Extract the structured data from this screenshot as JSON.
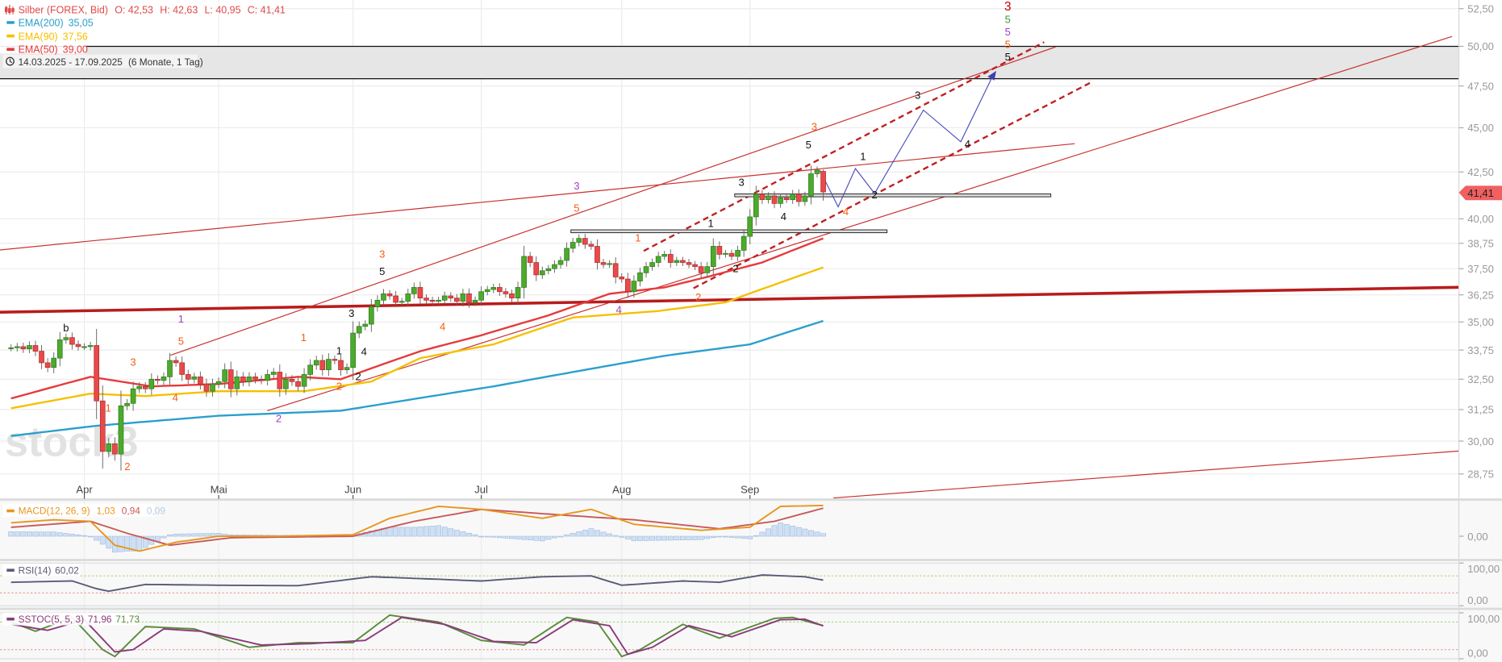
{
  "legend": {
    "title": "Silber (FOREX, Bid)",
    "open": "O: 42,53",
    "high": "H: 42,63",
    "low": "L: 40,95",
    "close": "C: 41,41",
    "ema200_label": "EMA(200)",
    "ema200_value": "35,05",
    "ema90_label": "EMA(90)",
    "ema90_value": "37,56",
    "ema50_label": "EMA(50)",
    "ema50_value": "39,00",
    "range": "14.03.2025 - 17.09.2025",
    "range_span": "(6 Monate, 1 Tag)",
    "macd_label": "MACD(12, 26, 9)",
    "macd_value": "1,03",
    "macd_signal": "0,94",
    "macd_hist": "0,09",
    "rsi_label": "RSI(14)",
    "rsi_value": "60,02",
    "sstoc_label": "SSTOC(5, 5, 3)",
    "sstoc_k": "71,96",
    "sstoc_d": "71,73"
  },
  "last_price_label": "41,41",
  "watermark": "stock3",
  "colors": {
    "up": "#4caa2c",
    "down": "#e84a4a",
    "ema200": "#2a9fcc",
    "ema90": "#f5c000",
    "ema50": "#e63a3a",
    "macd": "#e8961e",
    "signal": "#c85a5a",
    "hist": "#cfe0f5",
    "rsi": "#5a5a7a",
    "sstoc_k": "#8a3a7a",
    "sstoc_d": "#5a8a3a",
    "trend_thick": "#b81c1c",
    "trend_thin": "#c83030",
    "projection": "#5050c0",
    "price_marker": "#f06060"
  },
  "chart_data": [
    {
      "type": "candlestick",
      "title": "Silber (FOREX, Bid)",
      "scale": "log",
      "ylim": [
        28.0,
        53.0
      ],
      "start_date": "2025-03-14",
      "end_date": "2025-09-17",
      "x_tick_labels": [
        "Apr",
        "Mai",
        "Jun",
        "Jul",
        "Aug",
        "Sep"
      ],
      "y_ticks": [
        52.5,
        50,
        47.5,
        45,
        42.5,
        40,
        38.75,
        37.5,
        36.25,
        35,
        33.75,
        32.5,
        31.25,
        30,
        28.75
      ],
      "grid": true,
      "closes": [
        33.85,
        33.9,
        33.8,
        33.95,
        33.7,
        33.2,
        33.0,
        33.4,
        34.2,
        34.3,
        34.0,
        33.9,
        33.9,
        33.95,
        31.6,
        29.6,
        29.9,
        29.5,
        31.4,
        31.5,
        32.1,
        32.2,
        32.1,
        32.5,
        32.45,
        32.6,
        33.3,
        33.2,
        32.7,
        32.5,
        32.6,
        32.3,
        32.0,
        32.3,
        32.4,
        32.9,
        32.1,
        32.6,
        32.4,
        32.6,
        32.5,
        32.45,
        32.7,
        32.8,
        32.1,
        32.5,
        32.4,
        32.2,
        32.7,
        33.1,
        33.3,
        32.9,
        33.35,
        33.3,
        32.9,
        33.0,
        34.5,
        34.8,
        34.9,
        35.7,
        36.0,
        36.3,
        36.2,
        35.9,
        35.95,
        36.3,
        36.6,
        36.1,
        36.0,
        35.95,
        36.0,
        36.2,
        36.1,
        35.95,
        36.3,
        35.9,
        36.0,
        36.4,
        36.5,
        36.6,
        36.4,
        36.3,
        36.1,
        36.6,
        38.1,
        37.8,
        37.2,
        37.4,
        37.5,
        37.7,
        37.9,
        38.5,
        38.8,
        39.0,
        38.7,
        38.6,
        37.8,
        37.7,
        37.75,
        37.1,
        37.0,
        36.4,
        36.9,
        37.3,
        37.6,
        37.8,
        38.1,
        38.2,
        37.8,
        37.9,
        37.8,
        37.7,
        37.6,
        37.3,
        37.6,
        38.6,
        38.2,
        38.25,
        38.1,
        38.4,
        39.1,
        40.1,
        41.3,
        41.0,
        41.2,
        40.8,
        41.1,
        41.0,
        41.3,
        40.9,
        41.2,
        42.4,
        42.6,
        41.41
      ],
      "last_bar": {
        "open": 42.53,
        "high": 42.63,
        "low": 40.95,
        "close": 41.41
      },
      "series": [
        {
          "name": "EMA(200)",
          "points": [
            [
              "2025-03-14",
              30.2
            ],
            [
              "2025-04-03",
              30.6
            ],
            [
              "2025-05-01",
              31.0
            ],
            [
              "2025-05-29",
              31.2
            ],
            [
              "2025-07-03",
              32.2
            ],
            [
              "2025-08-12",
              33.5
            ],
            [
              "2025-09-01",
              34.0
            ],
            [
              "2025-09-17",
              35.05
            ]
          ]
        },
        {
          "name": "EMA(90)",
          "points": [
            [
              "2025-03-14",
              31.3
            ],
            [
              "2025-04-02",
              31.9
            ],
            [
              "2025-04-15",
              31.8
            ],
            [
              "2025-05-01",
              32.0
            ],
            [
              "2025-05-21",
              32.0
            ],
            [
              "2025-06-05",
              32.4
            ],
            [
              "2025-06-17",
              33.4
            ],
            [
              "2025-07-03",
              34.0
            ],
            [
              "2025-07-22",
              35.2
            ],
            [
              "2025-08-11",
              35.5
            ],
            [
              "2025-08-26",
              35.9
            ],
            [
              "2025-09-17",
              37.56
            ]
          ]
        },
        {
          "name": "EMA(50)",
          "points": [
            [
              "2025-03-14",
              31.7
            ],
            [
              "2025-04-02",
              32.6
            ],
            [
              "2025-04-16",
              32.2
            ],
            [
              "2025-05-01",
              32.3
            ],
            [
              "2025-05-20",
              32.6
            ],
            [
              "2025-05-29",
              32.5
            ],
            [
              "2025-06-17",
              33.7
            ],
            [
              "2025-07-01",
              34.4
            ],
            [
              "2025-07-16",
              35.3
            ],
            [
              "2025-07-30",
              36.3
            ],
            [
              "2025-08-12",
              36.6
            ],
            [
              "2025-08-21",
              37.1
            ],
            [
              "2025-09-03",
              37.8
            ],
            [
              "2025-09-17",
              39.0
            ]
          ]
        }
      ],
      "resistance_band": [
        47.95,
        50.0
      ],
      "wave_labels": [
        {
          "text": "1",
          "color": "#a040c0"
        },
        {
          "text": "2",
          "color": "#a040c0"
        },
        {
          "text": "3",
          "color": "#a040c0"
        },
        {
          "text": "4",
          "color": "#a040c0"
        },
        {
          "text": "5",
          "color": "#a040c0"
        },
        {
          "text": "1",
          "color": "#f06010"
        },
        {
          "text": "2",
          "color": "#f06010"
        },
        {
          "text": "3",
          "color": "#f06010"
        },
        {
          "text": "4",
          "color": "#f06010"
        },
        {
          "text": "5",
          "color": "#f06010"
        },
        {
          "text": "1",
          "color": "#f06010"
        },
        {
          "text": "2",
          "color": "#f06010"
        },
        {
          "text": "3",
          "color": "#f06010"
        },
        {
          "text": "4",
          "color": "#f06010"
        },
        {
          "text": "5",
          "color": "#f06010"
        },
        {
          "text": "1",
          "color": "#f06010"
        },
        {
          "text": "2",
          "color": "#f06010"
        },
        {
          "text": "3",
          "color": "#f06010"
        },
        {
          "text": "4",
          "color": "#f06010"
        },
        {
          "text": "5",
          "color": "#f06010"
        },
        {
          "text": "b",
          "color": "#111111"
        },
        {
          "text": "1",
          "color": "#111111"
        },
        {
          "text": "2",
          "color": "#111111"
        },
        {
          "text": "3",
          "color": "#111111"
        },
        {
          "text": "4",
          "color": "#111111"
        },
        {
          "text": "5",
          "color": "#111111"
        },
        {
          "text": "1",
          "color": "#111111"
        },
        {
          "text": "2",
          "color": "#111111"
        },
        {
          "text": "3",
          "color": "#111111"
        },
        {
          "text": "4",
          "color": "#111111"
        },
        {
          "text": "5",
          "color": "#111111"
        },
        {
          "text": "1",
          "color": "#111111"
        },
        {
          "text": "2",
          "color": "#111111"
        },
        {
          "text": "3",
          "color": "#111111"
        },
        {
          "text": "4",
          "color": "#111111"
        },
        {
          "text": "5",
          "color": "#111111"
        },
        {
          "text": "5",
          "color": "#3a9a3a"
        },
        {
          "text": "3",
          "color": "#c00000"
        }
      ]
    },
    {
      "type": "line",
      "title": "MACD(12, 26, 9)",
      "y_ticks": [
        0
      ],
      "series": [
        {
          "name": "MACD",
          "points": [
            [
              "2025-03-14",
              0.45
            ],
            [
              "2025-03-25",
              0.55
            ],
            [
              "2025-04-02",
              0.5
            ],
            [
              "2025-04-08",
              -0.3
            ],
            [
              "2025-04-14",
              -0.5
            ],
            [
              "2025-04-22",
              -0.2
            ],
            [
              "2025-05-01",
              0.0
            ],
            [
              "2025-05-15",
              0.0
            ],
            [
              "2025-06-02",
              0.05
            ],
            [
              "2025-06-10",
              0.6
            ],
            [
              "2025-06-20",
              1.0
            ],
            [
              "2025-07-01",
              0.9
            ],
            [
              "2025-07-15",
              0.6
            ],
            [
              "2025-07-25",
              0.9
            ],
            [
              "2025-08-05",
              0.4
            ],
            [
              "2025-08-20",
              0.2
            ],
            [
              "2025-09-01",
              0.3
            ],
            [
              "2025-09-08",
              1.0
            ],
            [
              "2025-09-17",
              1.03
            ]
          ]
        },
        {
          "name": "Signal",
          "points": [
            [
              "2025-03-14",
              0.3
            ],
            [
              "2025-04-02",
              0.5
            ],
            [
              "2025-04-10",
              0.1
            ],
            [
              "2025-04-20",
              -0.3
            ],
            [
              "2025-05-05",
              -0.05
            ],
            [
              "2025-06-02",
              0.0
            ],
            [
              "2025-06-15",
              0.5
            ],
            [
              "2025-07-01",
              0.9
            ],
            [
              "2025-07-20",
              0.7
            ],
            [
              "2025-08-05",
              0.55
            ],
            [
              "2025-08-25",
              0.25
            ],
            [
              "2025-09-05",
              0.5
            ],
            [
              "2025-09-17",
              0.94
            ]
          ]
        }
      ]
    },
    {
      "type": "line",
      "title": "RSI(14)",
      "ylim": [
        0,
        100
      ],
      "y_ticks": [
        100,
        0
      ],
      "bands": [
        70,
        30
      ],
      "series": [
        {
          "name": "RSI",
          "points": [
            [
              "2025-03-14",
              55
            ],
            [
              "2025-03-28",
              58
            ],
            [
              "2025-04-03",
              40
            ],
            [
              "2025-04-07",
              34
            ],
            [
              "2025-04-15",
              50
            ],
            [
              "2025-05-01",
              48
            ],
            [
              "2025-05-20",
              47
            ],
            [
              "2025-06-05",
              68
            ],
            [
              "2025-06-20",
              62
            ],
            [
              "2025-07-01",
              58
            ],
            [
              "2025-07-15",
              68
            ],
            [
              "2025-07-25",
              70
            ],
            [
              "2025-08-01",
              48
            ],
            [
              "2025-08-15",
              58
            ],
            [
              "2025-08-25",
              55
            ],
            [
              "2025-09-03",
              72
            ],
            [
              "2025-09-12",
              68
            ],
            [
              "2025-09-17",
              60
            ]
          ]
        }
      ]
    },
    {
      "type": "line",
      "title": "SSTOC(5, 5, 3)",
      "ylim": [
        0,
        100
      ],
      "y_ticks": [
        100,
        0
      ],
      "bands": [
        80,
        20
      ],
      "series": [
        {
          "name": "%K",
          "points": [
            [
              "2025-03-14",
              80
            ],
            [
              "2025-03-20",
              60
            ],
            [
              "2025-03-28",
              90
            ],
            [
              "2025-04-04",
              20
            ],
            [
              "2025-04-08",
              5
            ],
            [
              "2025-04-15",
              70
            ],
            [
              "2025-04-25",
              65
            ],
            [
              "2025-05-08",
              25
            ],
            [
              "2025-05-20",
              35
            ],
            [
              "2025-06-02",
              35
            ],
            [
              "2025-06-10",
              95
            ],
            [
              "2025-06-20",
              80
            ],
            [
              "2025-07-01",
              40
            ],
            [
              "2025-07-10",
              30
            ],
            [
              "2025-07-20",
              90
            ],
            [
              "2025-07-28",
              80
            ],
            [
              "2025-08-01",
              5
            ],
            [
              "2025-08-06",
              20
            ],
            [
              "2025-08-15",
              75
            ],
            [
              "2025-08-25",
              45
            ],
            [
              "2025-09-05",
              88
            ],
            [
              "2025-09-10",
              90
            ],
            [
              "2025-09-17",
              72
            ]
          ]
        },
        {
          "name": "%D",
          "points": [
            [
              "2025-03-14",
              75
            ],
            [
              "2025-03-24",
              62
            ],
            [
              "2025-04-01",
              85
            ],
            [
              "2025-04-08",
              15
            ],
            [
              "2025-04-11",
              20
            ],
            [
              "2025-04-18",
              65
            ],
            [
              "2025-04-28",
              60
            ],
            [
              "2025-05-12",
              30
            ],
            [
              "2025-05-22",
              33
            ],
            [
              "2025-06-04",
              40
            ],
            [
              "2025-06-12",
              90
            ],
            [
              "2025-06-23",
              75
            ],
            [
              "2025-07-03",
              38
            ],
            [
              "2025-07-14",
              35
            ],
            [
              "2025-07-22",
              85
            ],
            [
              "2025-07-30",
              72
            ],
            [
              "2025-08-04",
              10
            ],
            [
              "2025-08-08",
              25
            ],
            [
              "2025-08-18",
              72
            ],
            [
              "2025-08-27",
              48
            ],
            [
              "2025-09-08",
              85
            ],
            [
              "2025-09-12",
              86
            ],
            [
              "2025-09-17",
              71.73
            ]
          ]
        }
      ]
    }
  ]
}
